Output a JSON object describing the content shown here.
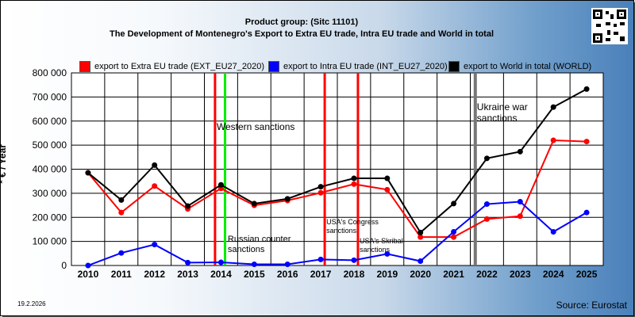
{
  "header": {
    "line1": "Product group:  (Sitc 11101)",
    "line2": "The Development of Montenegro's Export to Extra EU trade, Intra EU trade and World in total"
  },
  "colors": {
    "extra": "#ff0000",
    "intra": "#0000ff",
    "world": "#000000"
  },
  "footer": {
    "date": "19.2.2026",
    "source": "Source: Eurostat"
  },
  "chart_data": {
    "type": "line",
    "title": "The Development of Montenegro's Export to Extra EU trade, Intra EU trade and World in total",
    "ylabel": "* € / Year",
    "xlabel": "",
    "ylim": [
      0,
      800000
    ],
    "yticks": [
      "0",
      "100 000",
      "200 000",
      "300 000",
      "400 000",
      "500 000",
      "600 000",
      "700 000",
      "800 000"
    ],
    "x": [
      "2010",
      "2011",
      "2012",
      "2013",
      "2014",
      "2015",
      "2016",
      "2017",
      "2018",
      "2019",
      "2020",
      "2021",
      "2022",
      "2023",
      "2024",
      "2025"
    ],
    "grid": true,
    "legend_placement": "top",
    "series": [
      {
        "name": "export to Extra EU trade (EXT_EU27_2020)",
        "color": "#ff0000",
        "values": [
          385000,
          220000,
          330000,
          235000,
          320000,
          250000,
          270000,
          302000,
          338000,
          315000,
          118000,
          118000,
          193000,
          205000,
          520000,
          515000
        ]
      },
      {
        "name": "export to Intra EU trade (INT_EU27_2020)",
        "color": "#0000ff",
        "values": [
          0,
          52000,
          87000,
          12000,
          13000,
          5000,
          5000,
          25000,
          22000,
          48000,
          18000,
          140000,
          255000,
          265000,
          140000,
          220000
        ]
      },
      {
        "name": "export to World in total (WORLD)",
        "color": "#000000",
        "values": [
          385000,
          272000,
          417000,
          247000,
          335000,
          257000,
          277000,
          327000,
          362000,
          362000,
          137000,
          257000,
          445000,
          473000,
          658000,
          733000
        ]
      }
    ],
    "annotations": [
      {
        "text": "Western sanctions",
        "pos": 3.82,
        "color": "#ff0000"
      },
      {
        "text": "",
        "pos": 4.12,
        "color": "#00ee00"
      },
      {
        "text": "Russian counter sanctions",
        "pos": 3.82,
        "color": "#ff0000"
      },
      {
        "text": "USA's Congress sanctions",
        "pos": 7.12,
        "color": "#ff0000"
      },
      {
        "text": "USA's Skribal sanctions",
        "pos": 8.12,
        "color": "#ff0000"
      },
      {
        "text": "Ukraine war sanctions",
        "pos": 11.65,
        "color": "#777777"
      }
    ]
  }
}
